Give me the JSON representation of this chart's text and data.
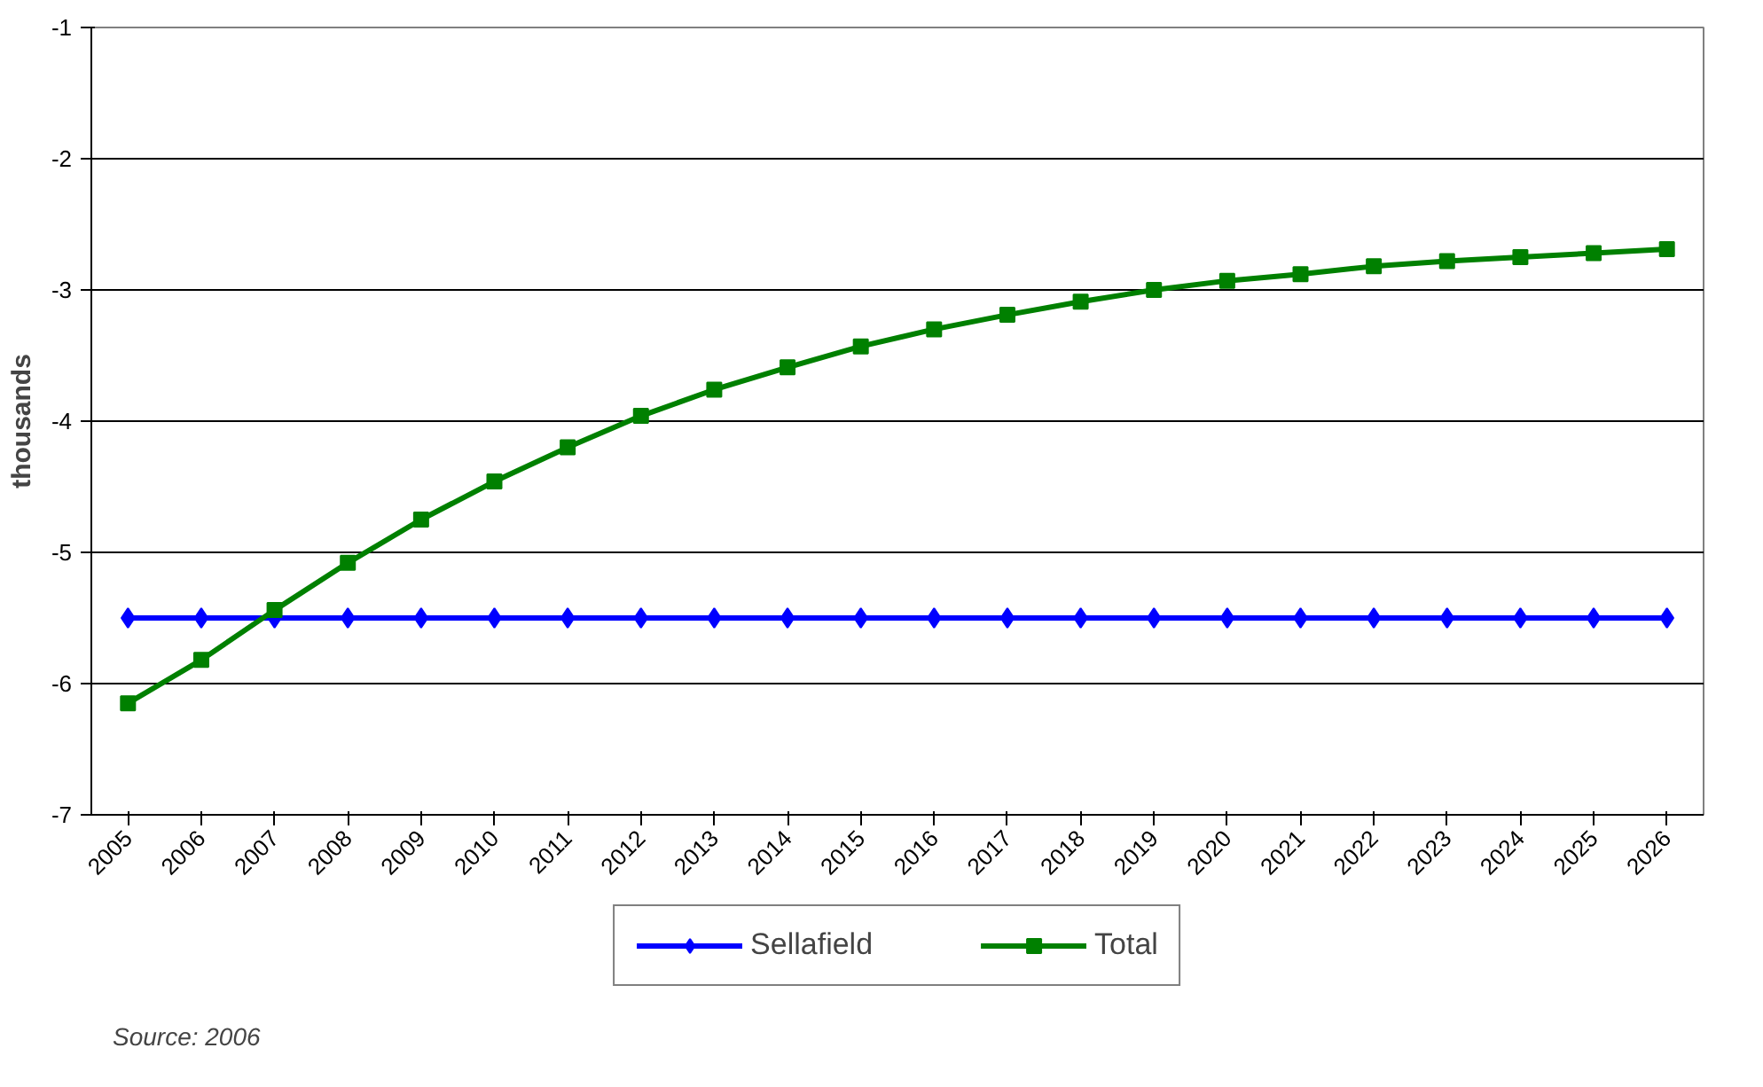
{
  "chart_data": {
    "type": "line",
    "ylabel": "thousands",
    "categories": [
      "2005",
      "2006",
      "2007",
      "2008",
      "2009",
      "2010",
      "2011",
      "2012",
      "2013",
      "2014",
      "2015",
      "2016",
      "2017",
      "2018",
      "2019",
      "2020",
      "2021",
      "2022",
      "2023",
      "2024",
      "2025",
      "2026"
    ],
    "series": [
      {
        "name": "Sellafield",
        "color": "#0000ff",
        "marker": "diamond",
        "values": [
          -5.5,
          -5.5,
          -5.5,
          -5.5,
          -5.5,
          -5.5,
          -5.5,
          -5.5,
          -5.5,
          -5.5,
          -5.5,
          -5.5,
          -5.5,
          -5.5,
          -5.5,
          -5.5,
          -5.5,
          -5.5,
          -5.5,
          -5.5,
          -5.5,
          -5.5
        ]
      },
      {
        "name": "Total",
        "color": "#008000",
        "marker": "square",
        "values": [
          -6.15,
          -5.82,
          -5.44,
          -5.08,
          -4.75,
          -4.46,
          -4.2,
          -3.96,
          -3.76,
          -3.59,
          -3.43,
          -3.3,
          -3.19,
          -3.09,
          -3.0,
          -2.93,
          -2.88,
          -2.82,
          -2.78,
          -2.75,
          -2.72,
          -2.69
        ]
      }
    ],
    "ylim": [
      -7,
      -1
    ],
    "yticks": [
      -7,
      -6,
      -5,
      -4,
      -3,
      -2,
      -1
    ],
    "grid": "y",
    "legend": "bottom",
    "line_style": "solid",
    "annotations": [
      "Source: 2006"
    ]
  }
}
